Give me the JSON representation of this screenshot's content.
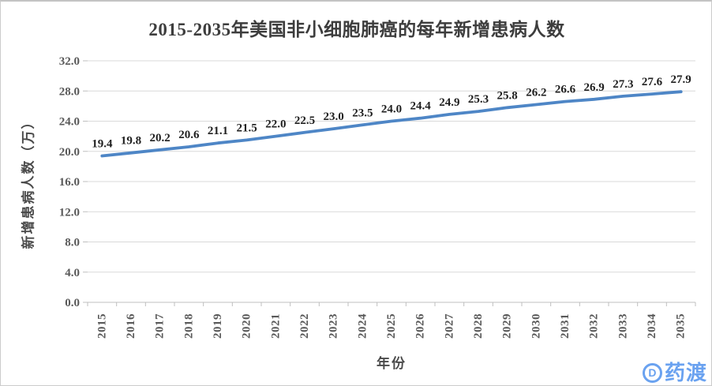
{
  "chart_data": {
    "type": "line",
    "title": "2015-2035年美国非小细胞肺癌的每年新增患病人数",
    "xlabel": "年份",
    "ylabel": "新增患病人数（万）",
    "categories": [
      "2015",
      "2016",
      "2017",
      "2018",
      "2019",
      "2020",
      "2021",
      "2022",
      "2023",
      "2024",
      "2025",
      "2026",
      "2027",
      "2028",
      "2029",
      "2030",
      "2031",
      "2032",
      "2033",
      "2034",
      "2035"
    ],
    "series": [
      {
        "name": "每年新增患病人数(万)",
        "values": [
          19.4,
          19.8,
          20.2,
          20.6,
          21.1,
          21.5,
          22.0,
          22.5,
          23.0,
          23.5,
          24.0,
          24.4,
          24.9,
          25.3,
          25.8,
          26.2,
          26.6,
          26.9,
          27.3,
          27.6,
          27.9
        ]
      }
    ],
    "ylim": [
      0,
      32
    ],
    "ytick_step": 4,
    "ytick_labels": [
      "0.0",
      "4.0",
      "8.0",
      "12.0",
      "16.0",
      "20.0",
      "24.0",
      "28.0",
      "32.0"
    ],
    "grid": "horizontal",
    "legend": "none",
    "data_labels_shown": true
  },
  "watermark": {
    "logo_letter": "D",
    "text": "药渡"
  },
  "colors": {
    "line": "#4e86c6",
    "gridline": "#d9d9d9",
    "axis": "#bfbfbf",
    "tick_label": "#595959",
    "data_label": "#1f1f1f",
    "title": "#3d3d3d",
    "watermark": "#6aa2f0"
  }
}
